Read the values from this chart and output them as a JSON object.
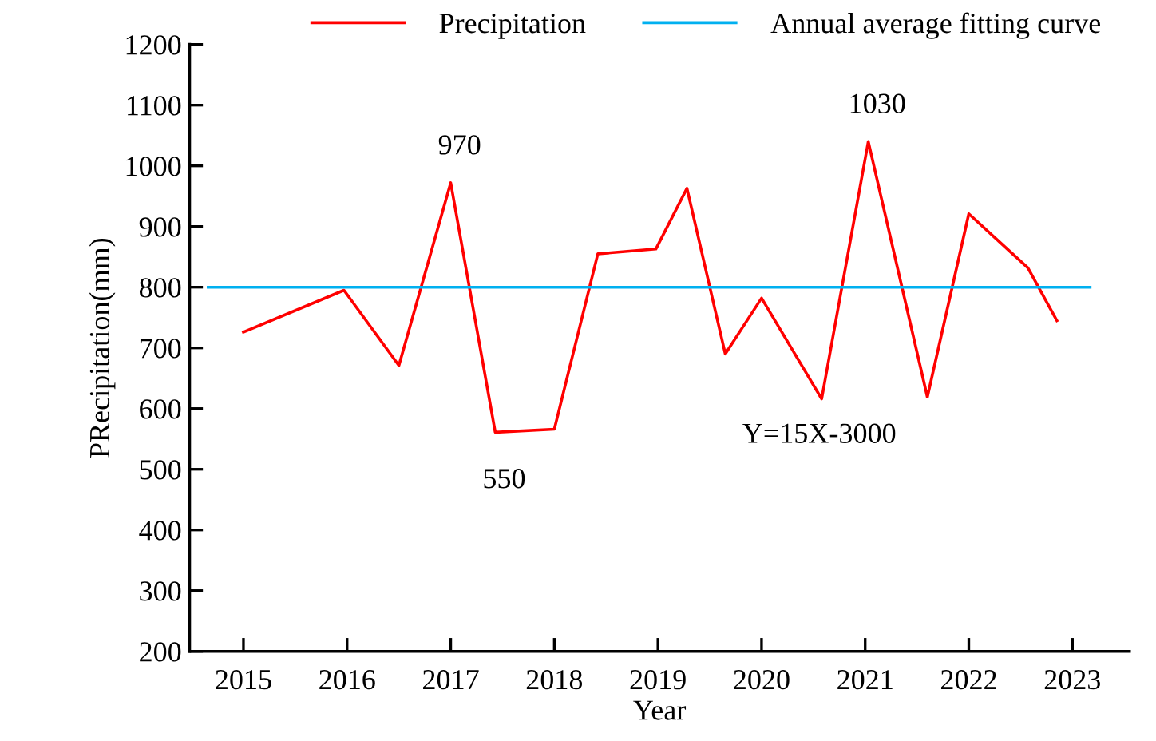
{
  "chart_data": {
    "type": "line",
    "xlabel": "Year",
    "ylabel": "PRecipitation(mm)",
    "series": [
      {
        "name": "Precipitation",
        "color": "#ff0000",
        "x": [
          2015,
          2015.97,
          2016.5,
          2017.0,
          2017.43,
          2018.0,
          2018.42,
          2018.98,
          2019.28,
          2019.65,
          2020.0,
          2020.58,
          2021.03,
          2021.6,
          2022.0,
          2022.57,
          2022.85
        ],
        "values": [
          726,
          795,
          671,
          972,
          561,
          566,
          855,
          863,
          963,
          690,
          782,
          616,
          1040,
          619,
          921,
          832,
          745
        ]
      },
      {
        "name": "Annual average fitting curve",
        "color": "#00b0f0",
        "x": [
          2014.66,
          2023.17
        ],
        "values": [
          800,
          800
        ]
      }
    ],
    "annotations": [
      {
        "text": "970",
        "x": 2017.0,
        "y": 972
      },
      {
        "text": "550",
        "x": 2017.43,
        "y": 561
      },
      {
        "text": "1030",
        "x": 2021.03,
        "y": 1040
      },
      "Y=15X-3000"
    ],
    "xlim": [
      2014.48,
      2023.55
    ],
    "xticks": [
      2015,
      2016,
      2017,
      2018,
      2019,
      2020,
      2021,
      2022,
      2023
    ],
    "ylim": [
      200,
      1200
    ],
    "yticks": [
      200,
      300,
      400,
      500,
      600,
      700,
      800,
      900,
      1000,
      1100,
      1200
    ],
    "grid": false,
    "legend": "top",
    "marker": "none",
    "line_style": "solid"
  }
}
